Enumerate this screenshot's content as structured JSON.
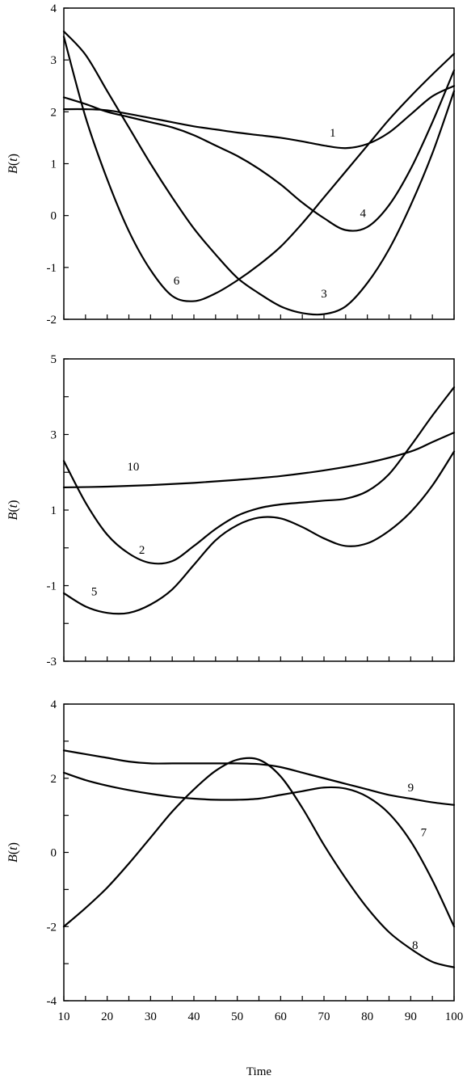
{
  "chart_data": [
    {
      "type": "line",
      "ylabel": "B(t)",
      "ylabel_main": "B",
      "ylabel_arg": "(t)",
      "xlim": [
        10,
        100
      ],
      "ylim": [
        -2,
        4
      ],
      "yticks": [
        -2,
        -1,
        0,
        1,
        2,
        3,
        4
      ],
      "ytick_labels": [
        "-2",
        "-1",
        "0",
        "1",
        "2",
        "3",
        "4"
      ],
      "grid": false,
      "series": [
        {
          "name": "1",
          "x": [
            10,
            15,
            20,
            25,
            30,
            35,
            40,
            45,
            50,
            55,
            60,
            65,
            70,
            75,
            80,
            85,
            90,
            95,
            100
          ],
          "y": [
            2.05,
            2.05,
            2.03,
            1.96,
            1.88,
            1.8,
            1.72,
            1.66,
            1.6,
            1.55,
            1.5,
            1.43,
            1.35,
            1.3,
            1.38,
            1.6,
            1.95,
            2.3,
            2.5
          ]
        },
        {
          "name": "3",
          "x": [
            10,
            15,
            20,
            25,
            30,
            35,
            40,
            45,
            50,
            55,
            60,
            65,
            70,
            75,
            80,
            85,
            90,
            95,
            100
          ],
          "y": [
            3.55,
            3.1,
            2.4,
            1.7,
            1.0,
            0.35,
            -0.25,
            -0.75,
            -1.2,
            -1.5,
            -1.75,
            -1.88,
            -1.9,
            -1.75,
            -1.3,
            -0.65,
            0.2,
            1.2,
            2.4
          ]
        },
        {
          "name": "4",
          "x": [
            10,
            15,
            20,
            25,
            30,
            35,
            40,
            45,
            50,
            55,
            60,
            65,
            70,
            75,
            80,
            85,
            90,
            95,
            100
          ],
          "y": [
            2.28,
            2.15,
            2.0,
            1.9,
            1.8,
            1.7,
            1.55,
            1.35,
            1.15,
            0.9,
            0.6,
            0.25,
            -0.05,
            -0.28,
            -0.22,
            0.2,
            0.9,
            1.8,
            2.8
          ]
        },
        {
          "name": "6",
          "x": [
            10,
            15,
            20,
            25,
            30,
            35,
            40,
            45,
            50,
            55,
            60,
            65,
            70,
            75,
            80,
            85,
            90,
            95,
            100
          ],
          "y": [
            3.45,
            1.9,
            0.7,
            -0.3,
            -1.05,
            -1.55,
            -1.65,
            -1.5,
            -1.25,
            -0.95,
            -0.6,
            -0.15,
            0.35,
            0.85,
            1.35,
            1.85,
            2.3,
            2.72,
            3.12
          ]
        },
        {
          "name": "",
          "x": [],
          "y": []
        }
      ],
      "curve_labels": [
        {
          "text": "1",
          "x": 72,
          "y": 1.6
        },
        {
          "text": "4",
          "x": 79,
          "y": 0.05
        },
        {
          "text": "6",
          "x": 36,
          "y": -1.25
        },
        {
          "text": "3",
          "x": 70,
          "y": -1.5
        }
      ]
    },
    {
      "type": "line",
      "ylabel": "B(t)",
      "ylabel_main": "B",
      "ylabel_arg": "(t)",
      "xlim": [
        10,
        100
      ],
      "ylim": [
        -3,
        5
      ],
      "yticks": [
        -3,
        -2,
        -1,
        0,
        1,
        2,
        3,
        4,
        5
      ],
      "ytick_labels": [
        "-3",
        "",
        "-1",
        "",
        "1",
        "",
        "3",
        "",
        "5"
      ],
      "grid": false,
      "series": [
        {
          "name": "10",
          "x": [
            10,
            20,
            30,
            40,
            50,
            60,
            70,
            80,
            90,
            95,
            100
          ],
          "y": [
            1.6,
            1.62,
            1.66,
            1.72,
            1.8,
            1.9,
            2.05,
            2.25,
            2.55,
            2.8,
            3.05
          ]
        },
        {
          "name": "2",
          "x": [
            10,
            15,
            20,
            25,
            30,
            35,
            40,
            45,
            50,
            55,
            60,
            65,
            70,
            75,
            80,
            85,
            90,
            95,
            100
          ],
          "y": [
            2.3,
            1.2,
            0.35,
            -0.15,
            -0.4,
            -0.35,
            0.05,
            0.5,
            0.85,
            1.05,
            1.15,
            1.2,
            1.25,
            1.3,
            1.5,
            1.95,
            2.7,
            3.5,
            4.25
          ]
        },
        {
          "name": "5",
          "x": [
            10,
            15,
            20,
            25,
            30,
            35,
            40,
            45,
            50,
            55,
            60,
            65,
            70,
            75,
            80,
            85,
            90,
            95,
            100
          ],
          "y": [
            -1.2,
            -1.55,
            -1.72,
            -1.72,
            -1.5,
            -1.1,
            -0.45,
            0.2,
            0.6,
            0.8,
            0.78,
            0.55,
            0.25,
            0.05,
            0.12,
            0.45,
            0.95,
            1.65,
            2.55
          ]
        }
      ],
      "curve_labels": [
        {
          "text": "10",
          "x": 26,
          "y": 2.15
        },
        {
          "text": "2",
          "x": 28,
          "y": -0.05
        },
        {
          "text": "5",
          "x": 17,
          "y": -1.15
        }
      ]
    },
    {
      "type": "line",
      "xlabel": "Time",
      "ylabel": "B(t)",
      "ylabel_main": "B",
      "ylabel_arg": "(t)",
      "xlim": [
        10,
        100
      ],
      "ylim": [
        -4,
        4
      ],
      "xticks": [
        10,
        20,
        30,
        40,
        50,
        60,
        70,
        80,
        90,
        100
      ],
      "xtick_labels": [
        "10",
        "20",
        "30",
        "40",
        "50",
        "60",
        "70",
        "80",
        "90",
        "100"
      ],
      "yticks": [
        -4,
        -3,
        -2,
        -1,
        0,
        1,
        2,
        3,
        4
      ],
      "ytick_labels": [
        "-4",
        "",
        "-2",
        "",
        "0",
        "",
        "2",
        "",
        "4"
      ],
      "grid": false,
      "series": [
        {
          "name": "9",
          "x": [
            10,
            15,
            20,
            25,
            30,
            35,
            40,
            45,
            50,
            55,
            60,
            65,
            70,
            75,
            80,
            85,
            90,
            95,
            100
          ],
          "y": [
            2.75,
            2.65,
            2.55,
            2.45,
            2.4,
            2.4,
            2.4,
            2.4,
            2.4,
            2.38,
            2.3,
            2.15,
            2.0,
            1.85,
            1.7,
            1.55,
            1.45,
            1.35,
            1.28
          ]
        },
        {
          "name": "7",
          "x": [
            10,
            15,
            20,
            25,
            30,
            35,
            40,
            45,
            50,
            55,
            60,
            65,
            70,
            75,
            80,
            85,
            90,
            95,
            100
          ],
          "y": [
            2.15,
            1.95,
            1.8,
            1.68,
            1.58,
            1.5,
            1.45,
            1.42,
            1.42,
            1.45,
            1.55,
            1.65,
            1.75,
            1.72,
            1.5,
            1.05,
            0.3,
            -0.75,
            -2.0
          ]
        },
        {
          "name": "8",
          "x": [
            10,
            15,
            20,
            25,
            30,
            35,
            40,
            45,
            50,
            55,
            60,
            65,
            70,
            75,
            80,
            85,
            90,
            95,
            100
          ],
          "y": [
            -2.0,
            -1.5,
            -0.95,
            -0.3,
            0.4,
            1.1,
            1.7,
            2.2,
            2.5,
            2.5,
            2.05,
            1.2,
            0.2,
            -0.7,
            -1.5,
            -2.15,
            -2.6,
            -2.95,
            -3.1
          ]
        }
      ],
      "curve_labels": [
        {
          "text": "9",
          "x": 90,
          "y": 1.75
        },
        {
          "text": "7",
          "x": 93,
          "y": 0.55
        },
        {
          "text": "8",
          "x": 91,
          "y": -2.5
        }
      ]
    }
  ]
}
